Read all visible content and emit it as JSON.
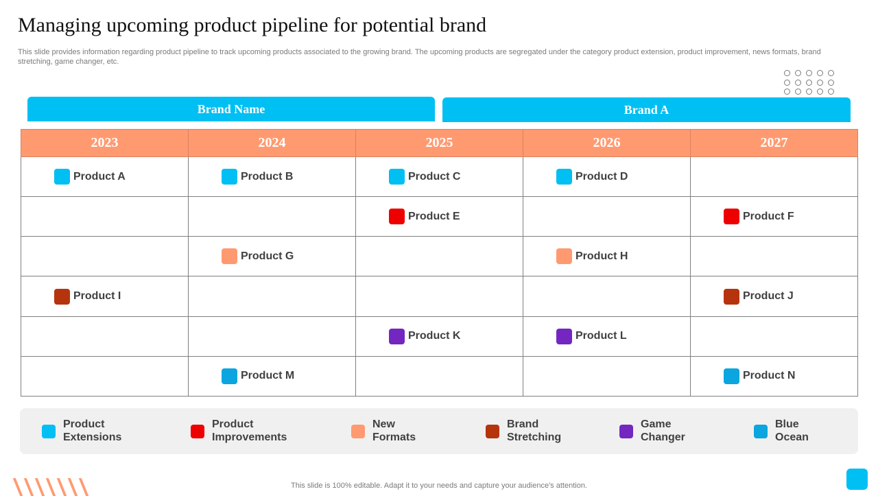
{
  "title": "Managing upcoming product pipeline for potential brand",
  "subtitle": "This slide provides information regarding product pipeline to track upcoming products associated to the growing brand. The upcoming products are segregated under the category product extension, product improvement, news formats, brand stretching, game changer, etc.",
  "tabs": {
    "left": "Brand Name",
    "right": "Brand A"
  },
  "years": [
    "2023",
    "2024",
    "2025",
    "2026",
    "2027"
  ],
  "colors": {
    "extension": "#00bff3",
    "improvement": "#ee0000",
    "new_formats": "#ff9a70",
    "stretching": "#b5340e",
    "game_changer": "#7327c0",
    "blue_ocean": "#0ba5e0"
  },
  "rows": [
    [
      {
        "label": "Product A",
        "color": "#00bff3"
      },
      {
        "label": "Product B",
        "color": "#00bff3"
      },
      {
        "label": "Product C",
        "color": "#00bff3"
      },
      {
        "label": "Product D",
        "color": "#00bff3"
      },
      null
    ],
    [
      null,
      null,
      {
        "label": "Product E",
        "color": "#ee0000"
      },
      null,
      {
        "label": "Product F",
        "color": "#ee0000"
      }
    ],
    [
      null,
      {
        "label": "Product G",
        "color": "#ff9a70"
      },
      null,
      {
        "label": "Product H",
        "color": "#ff9a70"
      },
      null
    ],
    [
      {
        "label": "Product I",
        "color": "#b5340e"
      },
      null,
      null,
      null,
      {
        "label": "Product J",
        "color": "#b5340e"
      }
    ],
    [
      null,
      null,
      {
        "label": "Product K",
        "color": "#7327c0"
      },
      {
        "label": "Product L",
        "color": "#7327c0"
      },
      null
    ],
    [
      null,
      {
        "label": "Product M",
        "color": "#0ba5e0"
      },
      null,
      null,
      {
        "label": "Product N",
        "color": "#0ba5e0"
      }
    ]
  ],
  "legend": [
    {
      "line1": "Product",
      "line2": "Extensions",
      "color": "#00bff3"
    },
    {
      "line1": "Product",
      "line2": "Improvements",
      "color": "#ee0000"
    },
    {
      "line1": "New",
      "line2": "Formats",
      "color": "#ff9a70"
    },
    {
      "line1": "Brand",
      "line2": "Stretching",
      "color": "#b5340e"
    },
    {
      "line1": "Game",
      "line2": "Changer",
      "color": "#7327c0"
    },
    {
      "line1": "Blue",
      "line2": "Ocean",
      "color": "#0ba5e0"
    }
  ],
  "footer": "This slide is 100% editable. Adapt it to your needs and capture your audience's attention."
}
